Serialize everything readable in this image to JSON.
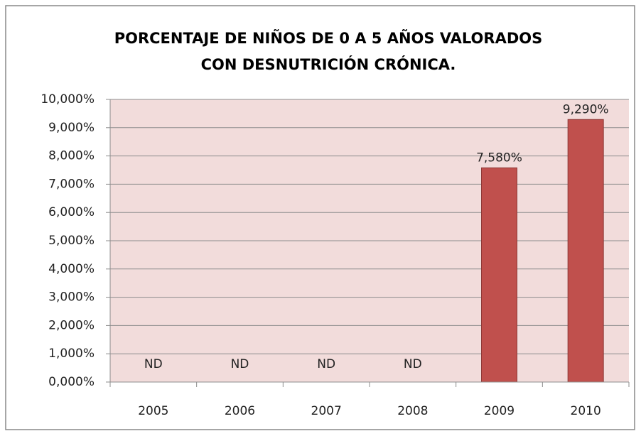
{
  "chart_data": {
    "type": "bar",
    "title": [
      "PORCENTAJE DE NIÑOS DE 0 A 5 AÑOS  VALORADOS",
      "CON DESNUTRICIÓN CRÓNICA."
    ],
    "categories": [
      "2005",
      "2006",
      "2007",
      "2008",
      "2009",
      "2010"
    ],
    "values": [
      null,
      null,
      null,
      null,
      7.58,
      9.29
    ],
    "value_labels": [
      "ND",
      "ND",
      "ND",
      "ND",
      "7,580%",
      "9,290%"
    ],
    "color": "#c0504d",
    "ylim": [
      0,
      10
    ],
    "yticks": [
      {
        "value": 0,
        "label": "0,000%"
      },
      {
        "value": 1,
        "label": "1,000%"
      },
      {
        "value": 2,
        "label": "2,000%"
      },
      {
        "value": 3,
        "label": "3,000%"
      },
      {
        "value": 4,
        "label": "4,000%"
      },
      {
        "value": 5,
        "label": "5,000%"
      },
      {
        "value": 6,
        "label": "6,000%"
      },
      {
        "value": 7,
        "label": "7,000%"
      },
      {
        "value": 8,
        "label": "8,000%"
      },
      {
        "value": 9,
        "label": "9,000%"
      },
      {
        "value": 10,
        "label": "10,000%"
      }
    ],
    "grid": true
  }
}
